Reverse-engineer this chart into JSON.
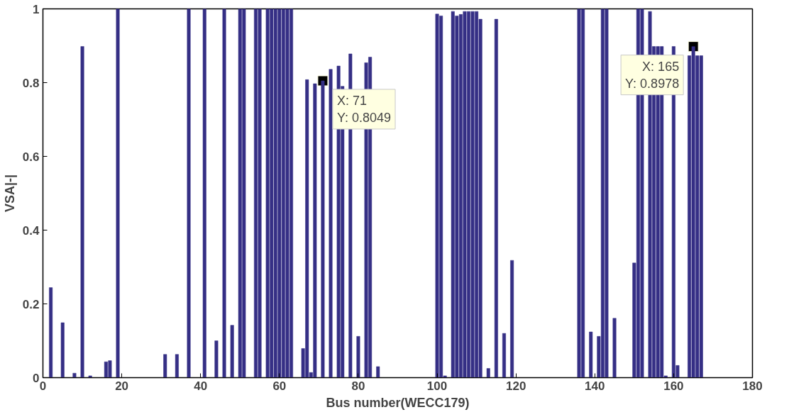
{
  "chart_data": {
    "type": "bar",
    "xlabel": "Bus number(WECC179)",
    "ylabel": "VSA|-|",
    "x": [
      2,
      5,
      8,
      10,
      12,
      16,
      17,
      19,
      31,
      34,
      37,
      41,
      44,
      46,
      48,
      50,
      51,
      54,
      55,
      57,
      58,
      59,
      60,
      61,
      62,
      63,
      66,
      67,
      68,
      69,
      71,
      73,
      75,
      76,
      78,
      80,
      82,
      83,
      85,
      100,
      101,
      102,
      104,
      105,
      106,
      107,
      108,
      109,
      110,
      111,
      113,
      115,
      117,
      119,
      136,
      137,
      139,
      141,
      142,
      143,
      145,
      150,
      151,
      152,
      154,
      155,
      156,
      157,
      158,
      160,
      161,
      164,
      165,
      166,
      167
    ],
    "values": [
      0.244,
      0.149,
      0.012,
      0.898,
      0.005,
      0.043,
      0.046,
      1,
      0.063,
      0.063,
      1,
      1,
      0.1,
      1,
      0.142,
      1,
      1,
      1,
      1,
      1,
      1,
      1,
      1,
      1,
      1,
      1,
      0.079,
      0.808,
      0.014,
      0.797,
      0.8049,
      0.836,
      0.845,
      0.79,
      0.878,
      0.112,
      0.854,
      0.869,
      0.03,
      0.986,
      0.981,
      0.005,
      0.993,
      0.981,
      0.985,
      0.993,
      0.993,
      0.993,
      0.993,
      0.972,
      0.025,
      0.972,
      0.12,
      0.318,
      1,
      1,
      0.124,
      0.112,
      1,
      1,
      0.161,
      0.311,
      1,
      1,
      0.993,
      0.898,
      0.898,
      0.898,
      0.005,
      0.898,
      0.033,
      0.873,
      0.8978,
      0.873,
      0.873
    ],
    "color": "#352f85",
    "xlim": [
      0,
      180
    ],
    "xticks": [
      0,
      20,
      40,
      60,
      80,
      100,
      120,
      140,
      160,
      180
    ],
    "ylim": [
      0,
      1
    ],
    "yticks": [
      0,
      0.2,
      0.4,
      0.6,
      0.8,
      1
    ],
    "annotations": [
      {
        "text": "X: 71\nY: 0.8049",
        "x": 71,
        "y": 0.8049
      },
      {
        "text": "X: 165\nY: 0.8978",
        "x": 165,
        "y": 0.8978
      }
    ]
  }
}
